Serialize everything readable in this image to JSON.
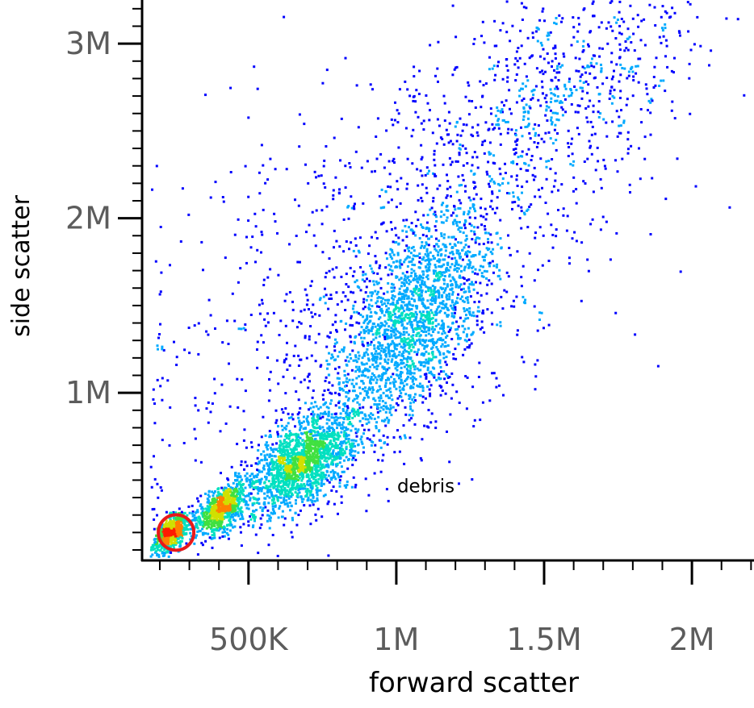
{
  "chart_data": {
    "type": "scatter",
    "style": "density",
    "xlabel": "forward scatter",
    "ylabel": "side scatter",
    "xlim": [
      140000,
      2210000
    ],
    "ylim": [
      40000,
      3250000
    ],
    "x_ticks": [
      {
        "value": 500000,
        "label": "500K"
      },
      {
        "value": 1000000,
        "label": "1M"
      },
      {
        "value": 1500000,
        "label": "1.5M"
      },
      {
        "value": 2000000,
        "label": "2M"
      }
    ],
    "y_ticks": [
      {
        "value": 1000000,
        "label": "1M"
      },
      {
        "value": 2000000,
        "label": "2M"
      },
      {
        "value": 3000000,
        "label": "3M"
      }
    ],
    "x_minor_step": 100000,
    "y_minor_step": 100000,
    "density_colormap": [
      "#0000ff",
      "#00aaff",
      "#00e0c0",
      "#40e040",
      "#d0e000",
      "#ff8000",
      "#ff1a00"
    ],
    "clusters": [
      {
        "x": 240000,
        "y": 200000,
        "sx": 30000,
        "sy": 55000,
        "n": 650
      },
      {
        "x": 410000,
        "y": 340000,
        "sx": 40000,
        "sy": 75000,
        "n": 750
      },
      {
        "x": 680000,
        "y": 600000,
        "sx": 95000,
        "sy": 150000,
        "n": 1700
      },
      {
        "x": 1050000,
        "y": 1400000,
        "sx": 140000,
        "sy": 320000,
        "n": 1900
      },
      {
        "x": 1550000,
        "y": 2700000,
        "sx": 250000,
        "sy": 350000,
        "n": 700
      },
      {
        "x": 1000000,
        "y": 1800000,
        "sx": 450000,
        "sy": 700000,
        "n": 900
      }
    ],
    "annotations": [
      {
        "text": "debris",
        "x": 1100000,
        "y": 430000
      },
      {
        "type": "circle",
        "x": 255000,
        "y": 200000,
        "r_x": 60000,
        "color": "#e8191a"
      }
    ]
  }
}
